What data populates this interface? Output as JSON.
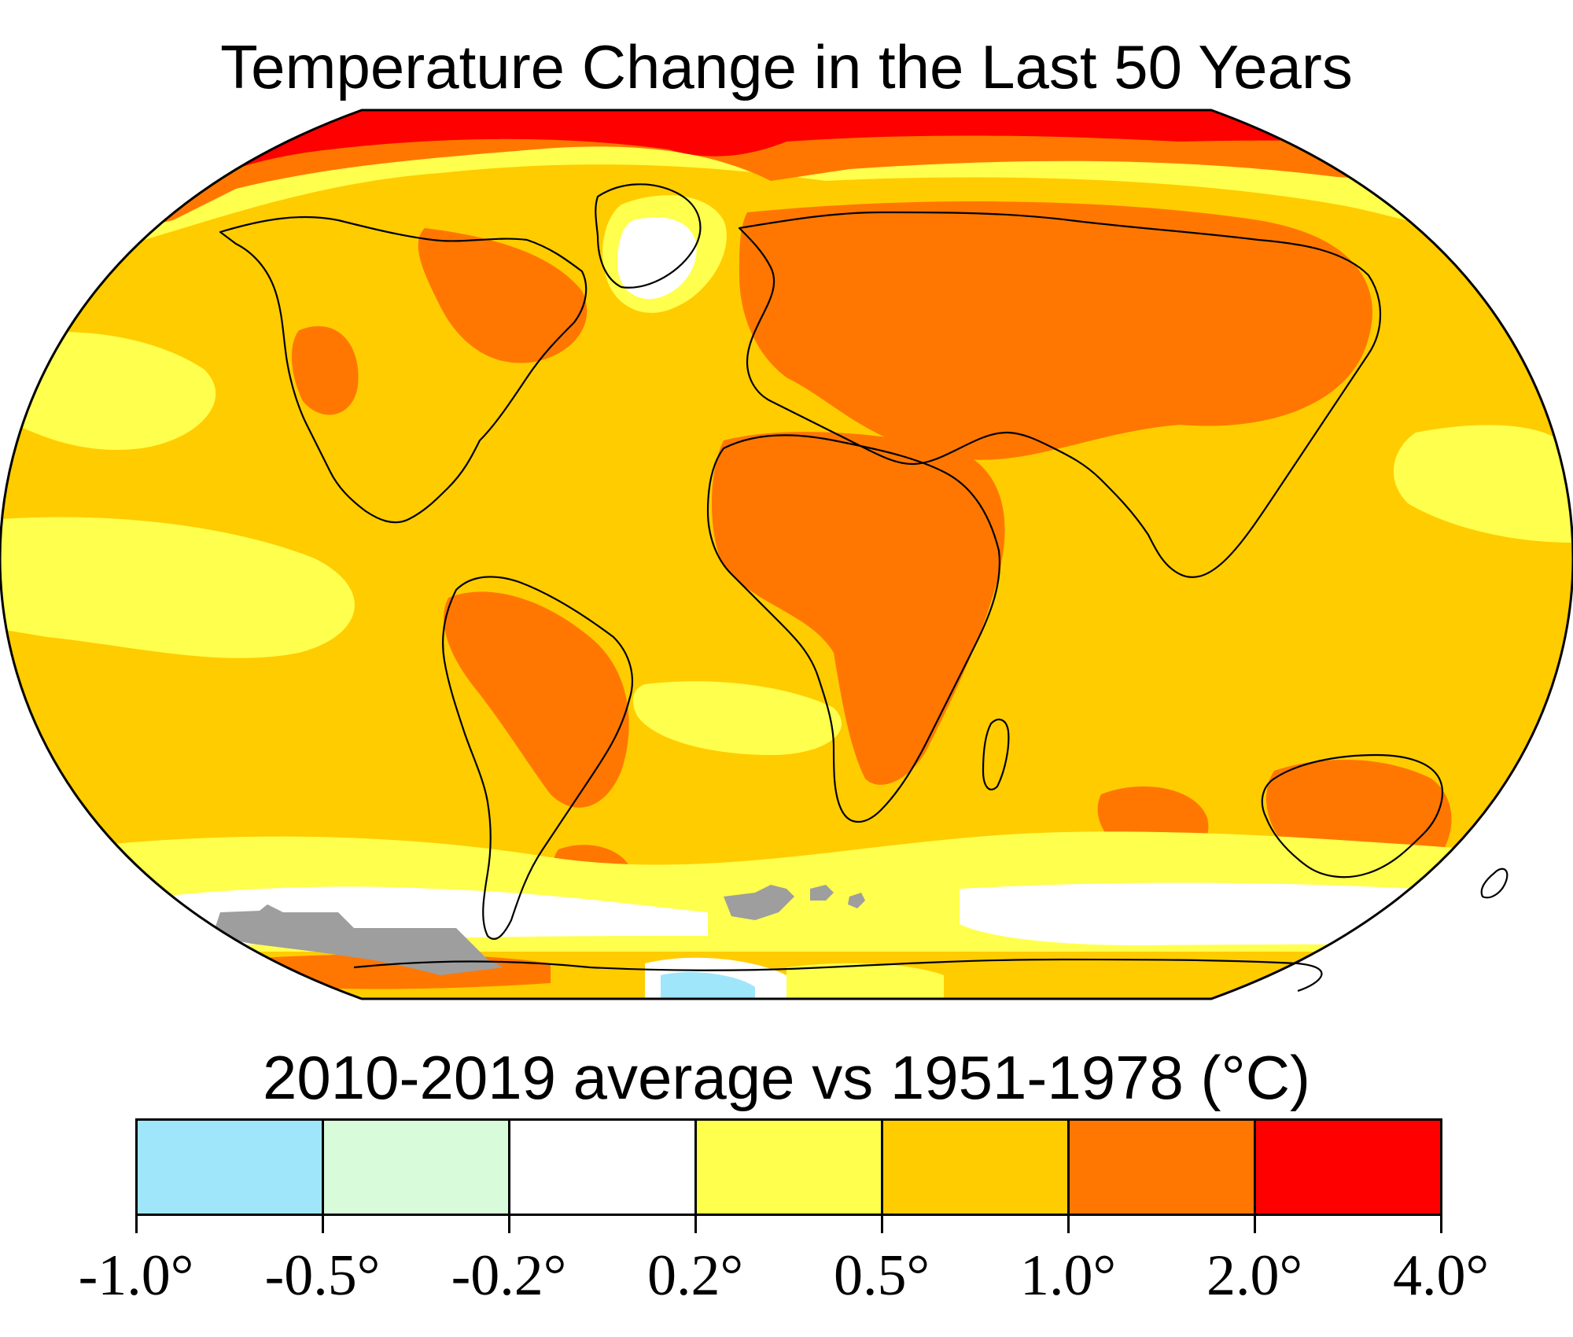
{
  "title": "Temperature Change in the Last 50 Years",
  "subtitle": "2010-2019 average vs 1951-1978 (°C)",
  "colors": {
    "cold_strong": "#9fe6fb",
    "cold_mild": "#d8fbd9",
    "neutral": "#ffffff",
    "warm_mild": "#ffff4d",
    "warm": "#ffcc00",
    "warm_strong": "#ff7700",
    "hot": "#ff0000",
    "no_data": "#9e9e9e",
    "coast": "#000000"
  },
  "legend": {
    "bins": [
      "#9fe6fb",
      "#d8fbd9",
      "#ffffff",
      "#ffff4d",
      "#ffcc00",
      "#ff7700",
      "#ff0000"
    ],
    "ticks": [
      "-1.0°",
      "-0.5°",
      "-0.2°",
      "0.2°",
      "0.5°",
      "1.0°",
      "2.0°",
      "4.0°"
    ]
  }
}
